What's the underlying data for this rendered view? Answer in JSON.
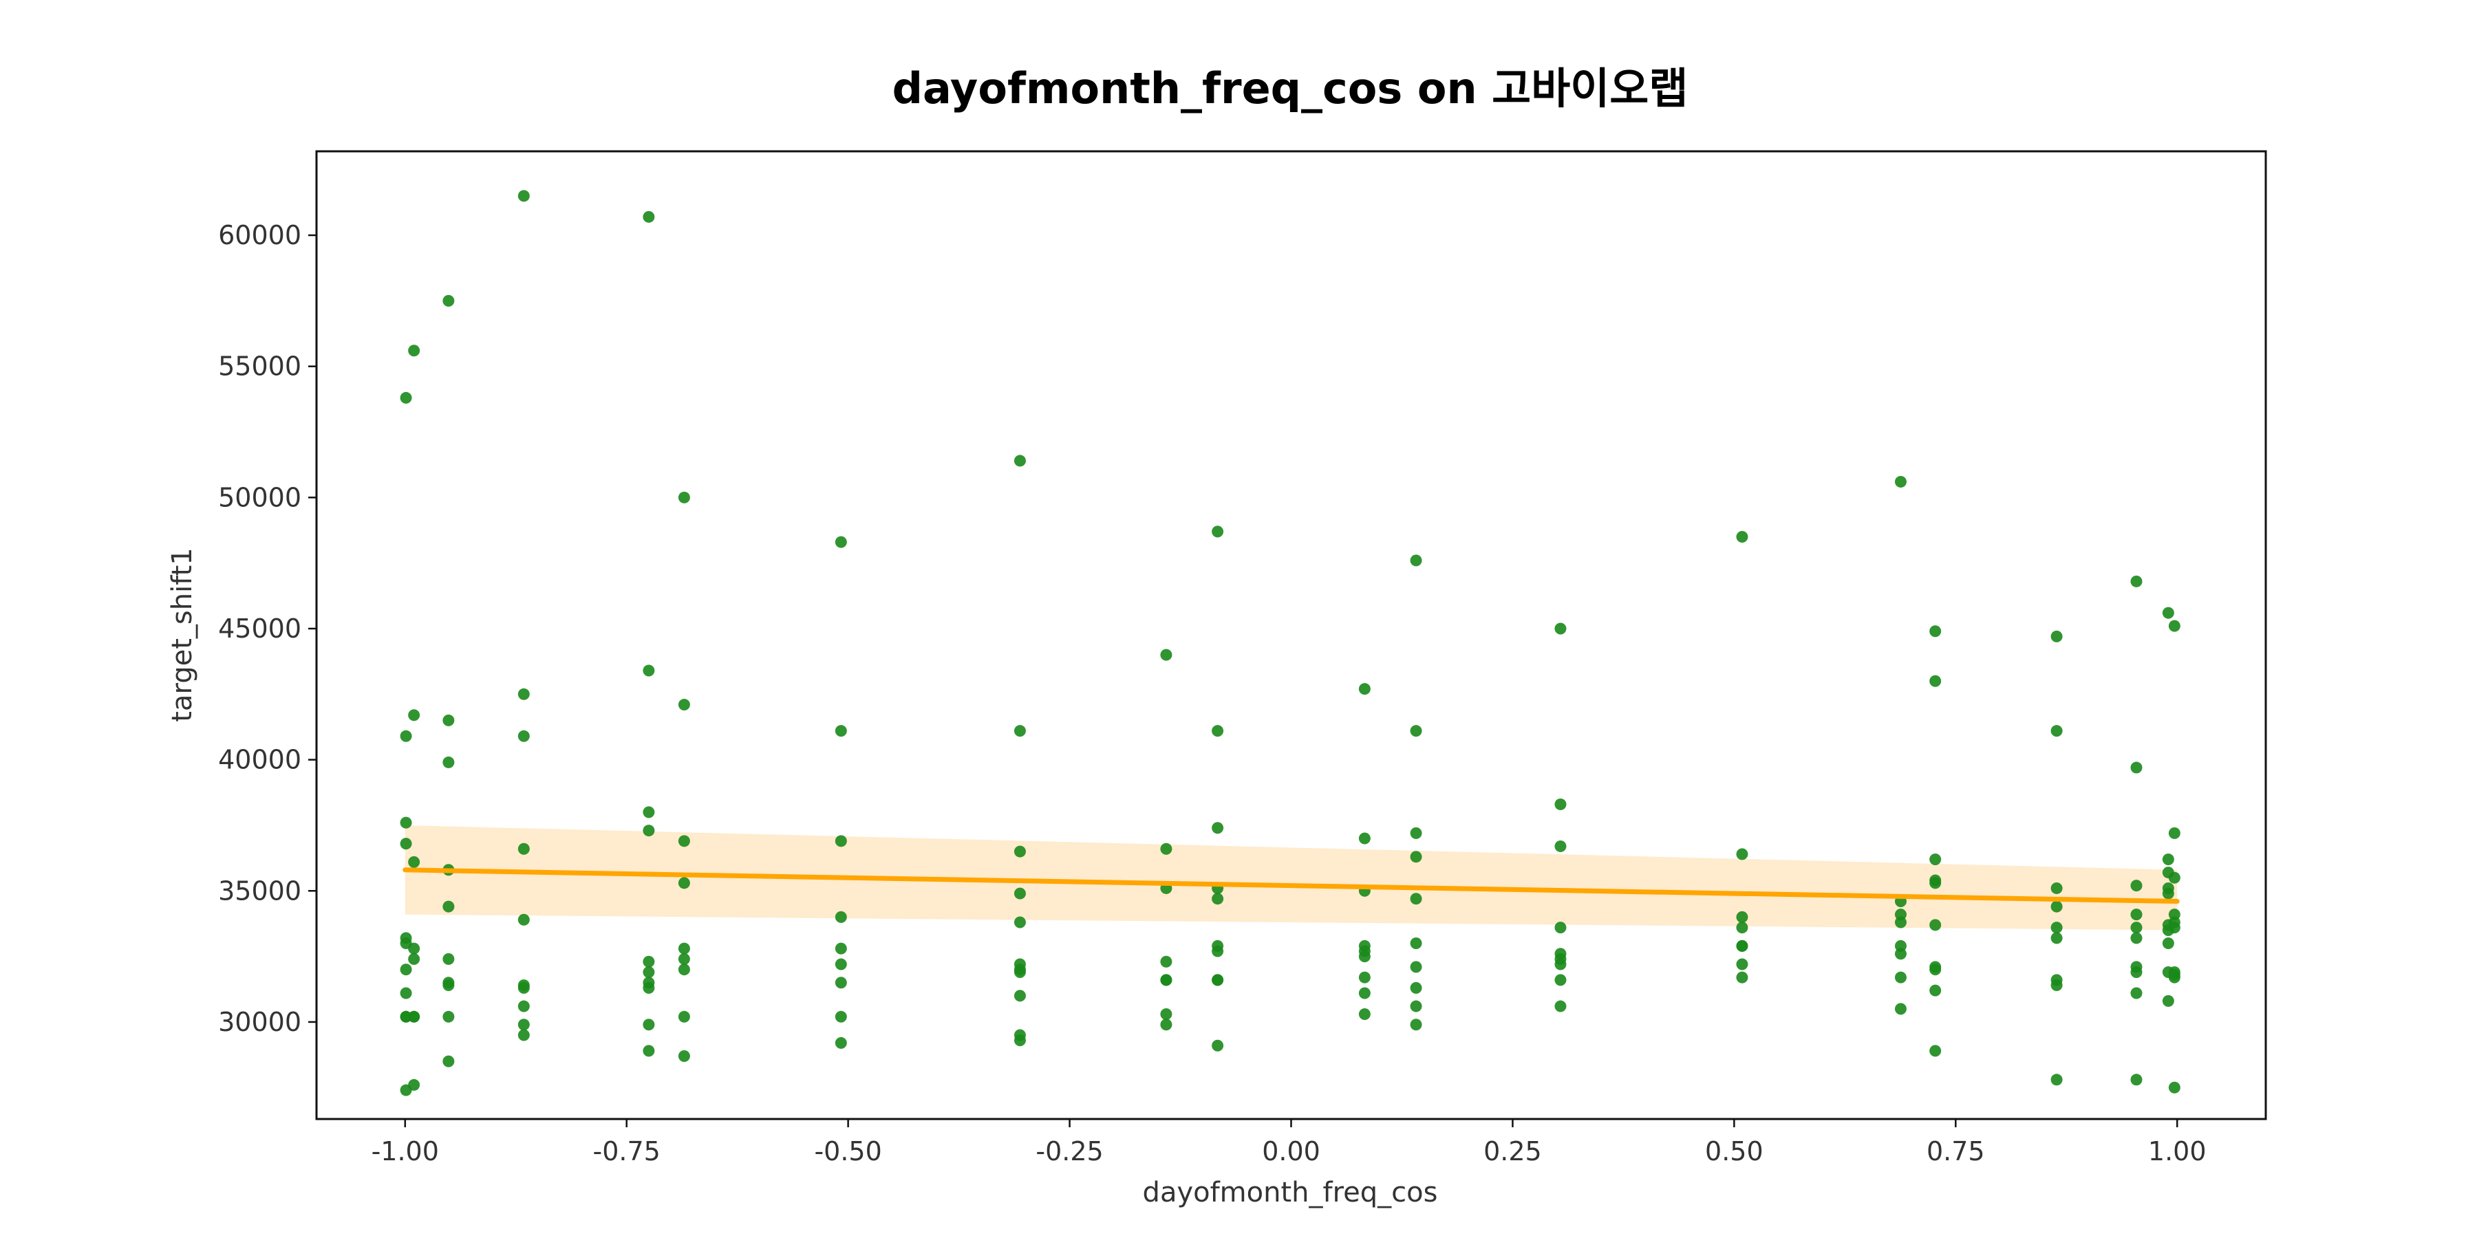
{
  "chart_data": {
    "type": "scatter",
    "title": "dayofmonth_freq_cos on 고바이오랩",
    "xlabel": "dayofmonth_freq_cos",
    "ylabel": "target_shift1",
    "xlim": [
      -1.1,
      1.1
    ],
    "ylim": [
      26300,
      63200
    ],
    "x_ticks": [
      -1.0,
      -0.75,
      -0.5,
      -0.25,
      0.0,
      0.25,
      0.5,
      0.75,
      1.0
    ],
    "x_tick_labels": [
      "-1.00",
      "-0.75",
      "-0.50",
      "-0.25",
      "0.00",
      "0.25",
      "0.50",
      "0.75",
      "1.00"
    ],
    "y_ticks": [
      30000,
      35000,
      40000,
      45000,
      50000,
      55000,
      60000
    ],
    "y_tick_labels": [
      "30000",
      "35000",
      "40000",
      "45000",
      "50000",
      "55000",
      "60000"
    ],
    "grid": false,
    "colors": {
      "points": "#1a8a1a",
      "regression_line": "#ffa500",
      "confidence_band": "#ffe8c4"
    },
    "series": [
      {
        "kind": "points",
        "x": [
          -0.999,
          -0.999,
          -0.999,
          -0.999,
          -0.999,
          -0.999,
          -0.999,
          -0.999,
          -0.999,
          -0.999,
          -0.999,
          -0.99,
          -0.99,
          -0.99,
          -0.99,
          -0.99,
          -0.99,
          -0.99,
          -0.99,
          -0.951,
          -0.951,
          -0.951,
          -0.951,
          -0.951,
          -0.951,
          -0.951,
          -0.951,
          -0.951,
          -0.951,
          -0.866,
          -0.866,
          -0.866,
          -0.866,
          -0.866,
          -0.866,
          -0.866,
          -0.866,
          -0.866,
          -0.866,
          -0.725,
          -0.725,
          -0.725,
          -0.725,
          -0.725,
          -0.725,
          -0.725,
          -0.725,
          -0.725,
          -0.725,
          -0.685,
          -0.685,
          -0.685,
          -0.685,
          -0.685,
          -0.685,
          -0.685,
          -0.685,
          -0.685,
          -0.508,
          -0.508,
          -0.508,
          -0.508,
          -0.508,
          -0.508,
          -0.508,
          -0.508,
          -0.508,
          -0.306,
          -0.306,
          -0.306,
          -0.306,
          -0.306,
          -0.306,
          -0.306,
          -0.306,
          -0.306,
          -0.306,
          -0.306,
          -0.141,
          -0.141,
          -0.141,
          -0.141,
          -0.141,
          -0.141,
          -0.141,
          -0.141,
          -0.083,
          -0.083,
          -0.083,
          -0.083,
          -0.083,
          -0.083,
          -0.083,
          -0.083,
          -0.083,
          -0.083,
          0.083,
          0.083,
          0.083,
          0.083,
          0.083,
          0.083,
          0.083,
          0.083,
          0.083,
          0.141,
          0.141,
          0.141,
          0.141,
          0.141,
          0.141,
          0.141,
          0.141,
          0.141,
          0.141,
          0.304,
          0.304,
          0.304,
          0.304,
          0.304,
          0.304,
          0.304,
          0.304,
          0.304,
          0.509,
          0.509,
          0.509,
          0.509,
          0.509,
          0.509,
          0.509,
          0.509,
          0.688,
          0.688,
          0.688,
          0.688,
          0.688,
          0.688,
          0.688,
          0.688,
          0.727,
          0.727,
          0.727,
          0.727,
          0.727,
          0.727,
          0.727,
          0.727,
          0.727,
          0.727,
          0.864,
          0.864,
          0.864,
          0.864,
          0.864,
          0.864,
          0.864,
          0.864,
          0.864,
          0.954,
          0.954,
          0.954,
          0.954,
          0.954,
          0.954,
          0.954,
          0.954,
          0.954,
          0.954,
          0.99,
          0.99,
          0.99,
          0.99,
          0.99,
          0.99,
          0.99,
          0.99,
          0.99,
          0.99,
          0.997,
          0.997,
          0.997,
          0.997,
          0.997,
          0.997,
          0.997,
          0.997,
          0.997,
          0.997
        ],
        "y": [
          53800,
          40900,
          37600,
          36800,
          33200,
          33000,
          32000,
          31100,
          30200,
          30200,
          27400,
          55600,
          41700,
          36100,
          32800,
          32400,
          30200,
          30200,
          27600,
          57500,
          41500,
          39900,
          35800,
          34400,
          32400,
          31500,
          31400,
          30200,
          28500,
          61500,
          42500,
          40900,
          36600,
          33900,
          31400,
          31300,
          30600,
          29900,
          29500,
          60700,
          43400,
          38000,
          37300,
          32300,
          31900,
          31500,
          31300,
          29900,
          28900,
          50000,
          42100,
          36900,
          35300,
          32800,
          32400,
          32000,
          30200,
          28700,
          48300,
          41100,
          36900,
          34000,
          32800,
          32200,
          31500,
          30200,
          29200,
          51400,
          41100,
          36500,
          34900,
          33800,
          32200,
          32000,
          31900,
          31000,
          29500,
          29300,
          44000,
          36600,
          35100,
          32300,
          31600,
          31600,
          30300,
          29900,
          48700,
          41100,
          37400,
          35100,
          34700,
          32900,
          32700,
          31600,
          31600,
          29100,
          42700,
          37000,
          35000,
          32900,
          32700,
          32500,
          31700,
          31100,
          30300,
          47600,
          41100,
          37200,
          36300,
          34700,
          33000,
          32100,
          31300,
          30600,
          29900,
          45000,
          38300,
          36700,
          33600,
          32600,
          32400,
          32200,
          31600,
          30600,
          48500,
          36400,
          34000,
          33600,
          32900,
          32900,
          32200,
          31700,
          50600,
          34600,
          34100,
          33800,
          32900,
          32600,
          31700,
          30500,
          44900,
          43000,
          36200,
          35400,
          35300,
          33700,
          32100,
          32000,
          31200,
          28900,
          44700,
          41100,
          35100,
          34400,
          33600,
          33200,
          31600,
          31400,
          27800,
          46800,
          39700,
          35200,
          34100,
          33600,
          33200,
          32100,
          31900,
          31100,
          27800,
          45600,
          36200,
          35700,
          35100,
          34900,
          33700,
          33500,
          33000,
          31900,
          30800,
          45100,
          37200,
          35500,
          34100,
          33800,
          33600,
          31900,
          31800,
          31700,
          27500
        ]
      }
    ],
    "regression": {
      "x": [
        -1.0,
        1.0
      ],
      "y": [
        35800,
        34600
      ],
      "ci_lower": [
        34100,
        33500
      ],
      "ci_upper": [
        37500,
        35800
      ]
    }
  }
}
